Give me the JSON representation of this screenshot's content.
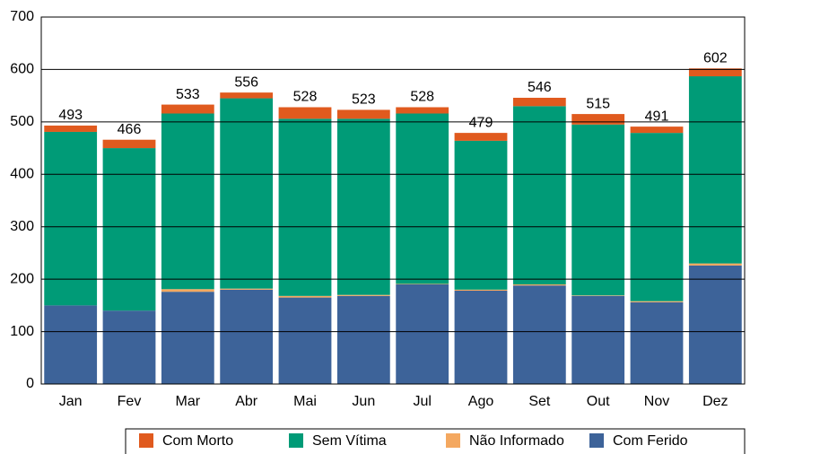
{
  "chart_data": {
    "type": "stacked_bar",
    "categories": [
      "Jan",
      "Fev",
      "Mar",
      "Abr",
      "Mai",
      "Jun",
      "Jul",
      "Ago",
      "Set",
      "Out",
      "Nov",
      "Dez"
    ],
    "series": [
      {
        "name": "Com Morto",
        "color": "#e05a1e",
        "values": [
          12,
          16,
          17,
          11,
          22,
          17,
          12,
          15,
          16,
          20,
          12,
          15
        ]
      },
      {
        "name": "Sem Vítima",
        "color": "#009b77",
        "values": [
          331,
          310,
          335,
          363,
          338,
          336,
          325,
          284,
          340,
          326,
          321,
          357
        ]
      },
      {
        "name": "Não Informado",
        "color": "#f4a860",
        "values": [
          0,
          0,
          5,
          2,
          3,
          2,
          1,
          2,
          2,
          1,
          2,
          4
        ]
      },
      {
        "name": "Com Ferido",
        "color": "#3d6399",
        "values": [
          150,
          140,
          176,
          180,
          165,
          168,
          190,
          178,
          188,
          168,
          156,
          226
        ]
      }
    ],
    "totals": [
      493,
      466,
      533,
      556,
      528,
      523,
      528,
      479,
      546,
      515,
      491,
      602
    ],
    "ylim": [
      0,
      700
    ],
    "yticks": [
      0,
      100,
      200,
      300,
      400,
      500,
      600,
      700
    ],
    "grid": true
  }
}
